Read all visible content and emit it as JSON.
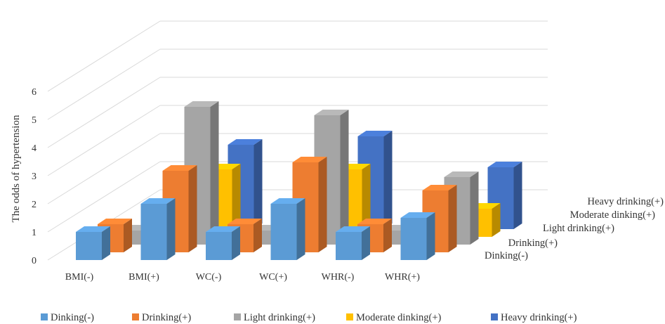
{
  "chart_data": {
    "type": "bar",
    "subtype": "3d-column",
    "title": "",
    "xlabel": "",
    "ylabel": "The odds of hypertension",
    "ylim": [
      0,
      6
    ],
    "yticks": [
      "0",
      "1",
      "2",
      "3",
      "4",
      "5",
      "6"
    ],
    "grid": true,
    "legend_position": "bottom",
    "categories": [
      "BMI(-)",
      "BMI(+)",
      "WC(-)",
      "WC(+)",
      "WHR(-)",
      "WHR(+)"
    ],
    "series": [
      {
        "name": "Dinking(-)",
        "color": "#5B9BD5",
        "values": [
          1.0,
          2.0,
          1.0,
          2.0,
          1.0,
          1.5
        ]
      },
      {
        "name": "Drinking(+)",
        "color": "#ED7D31",
        "values": [
          1.0,
          2.9,
          1.0,
          3.2,
          1.0,
          2.2
        ]
      },
      {
        "name": "Light drinking(+)",
        "color": "#A5A5A5",
        "values": [
          0.5,
          4.9,
          0.5,
          4.6,
          0.5,
          2.4
        ]
      },
      {
        "name": "Moderate dinking(+)",
        "color": "#FFC000",
        "values": [
          0.3,
          2.4,
          0.3,
          2.4,
          0.3,
          1.0
        ]
      },
      {
        "name": "Heavy drinking(+)",
        "color": "#4472C4",
        "values": [
          0.0,
          3.0,
          0.0,
          3.3,
          0.0,
          2.2
        ]
      }
    ]
  }
}
